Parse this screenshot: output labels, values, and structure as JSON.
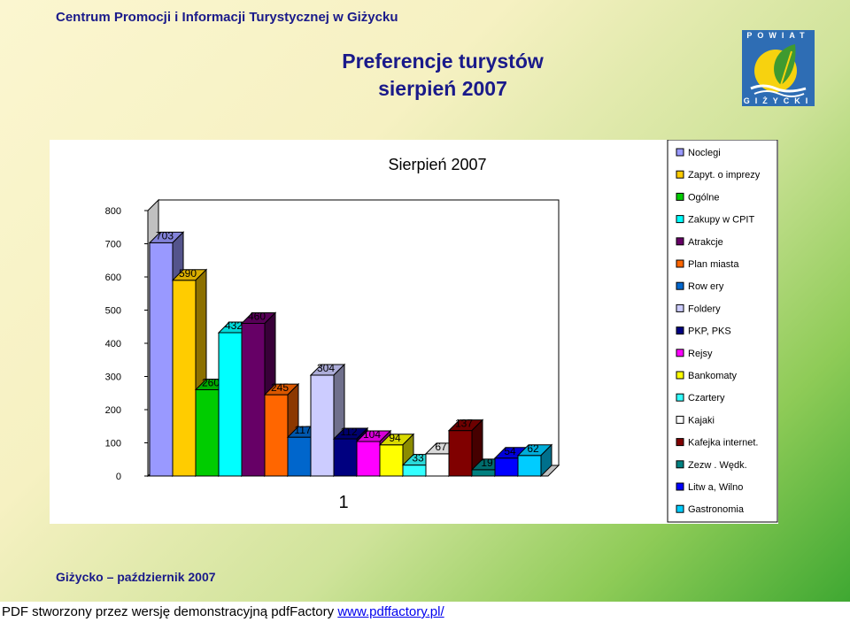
{
  "header": {
    "org": "Centrum Promocji i Informacji Turystycznej w Giżycku",
    "title_line1": "Preferencje turystów",
    "title_line2": "sierpień 2007"
  },
  "logo": {
    "top_text": "POWIAT",
    "bottom_text": "GIŻYCKI",
    "colors": {
      "background": "#2e6db4",
      "sun": "#f7d20f",
      "leaf": "#3f9a2f",
      "water": "#ffffff"
    }
  },
  "footer": {
    "left_text": "Giżycko – październik 2007",
    "pdf_notice": "PDF stworzony przez wersję demonstracyjną pdfFactory",
    "pdf_link": "www.pdffactory.pl/"
  },
  "chart_data": {
    "type": "bar",
    "style": "3d-clustered-column",
    "title": "Sierpień 2007",
    "categories": [
      "1"
    ],
    "ylim": [
      0,
      800
    ],
    "yticks": [
      0,
      100,
      200,
      300,
      400,
      500,
      600,
      700,
      800
    ],
    "grid": false,
    "legend_position": "right",
    "series": [
      {
        "name": "Noclegi",
        "value": 703,
        "color": "#9999ff"
      },
      {
        "name": "Zapyt. o imprezy",
        "value": 590,
        "color": "#ffcc00"
      },
      {
        "name": "Ogólne",
        "value": 260,
        "color": "#00cc00"
      },
      {
        "name": "Zakupy w CPIT",
        "value": 432,
        "color": "#00ffff"
      },
      {
        "name": "Atrakcje",
        "value": 460,
        "color": "#660066"
      },
      {
        "name": "Plan miasta",
        "value": 245,
        "color": "#ff6600"
      },
      {
        "name": "Row ery",
        "value": 117,
        "color": "#0066cc"
      },
      {
        "name": "Foldery",
        "value": 304,
        "color": "#ccccff"
      },
      {
        "name": "PKP, PKS",
        "value": 112,
        "color": "#000080"
      },
      {
        "name": "Rejsy",
        "value": 104,
        "color": "#ff00ff"
      },
      {
        "name": "Bankomaty",
        "value": 94,
        "color": "#ffff00"
      },
      {
        "name": "Czartery",
        "value": 33,
        "color": "#33ffff"
      },
      {
        "name": "Kajaki",
        "value": 67,
        "color": "#ffffff"
      },
      {
        "name": "Kafejka internet.",
        "value": 137,
        "color": "#800000"
      },
      {
        "name": "Zezw . Wędk.",
        "value": 19,
        "color": "#008080"
      },
      {
        "name": "Litw a, Wilno",
        "value": 54,
        "color": "#0000ff"
      },
      {
        "name": "Gastronomia",
        "value": 62,
        "color": "#00ccff"
      }
    ]
  }
}
